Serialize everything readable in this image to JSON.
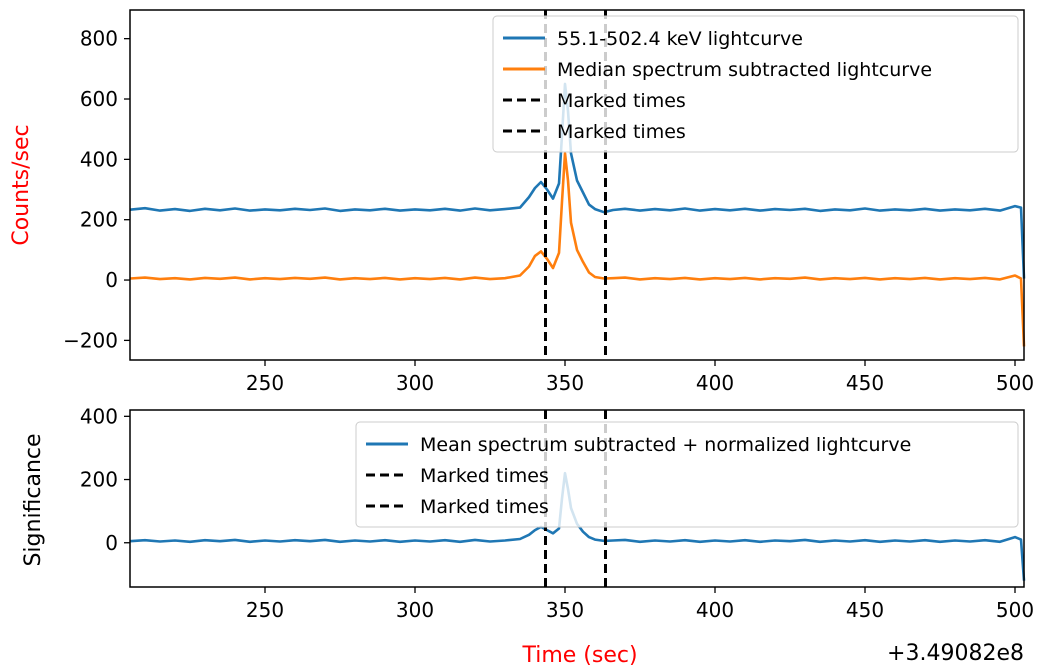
{
  "chart_data": [
    {
      "type": "line",
      "xlabel": "",
      "ylabel": "Counts/sec",
      "xlim": [
        205,
        503
      ],
      "ylim": [
        -265,
        895
      ],
      "x_ticks": [
        "250",
        "300",
        "350",
        "400",
        "450",
        "500"
      ],
      "y_ticks": [
        "−200",
        "0",
        "200",
        "400",
        "600",
        "800"
      ],
      "x_tick_values": [
        250,
        300,
        350,
        400,
        450,
        500
      ],
      "y_tick_values": [
        -200,
        0,
        200,
        400,
        600,
        800
      ],
      "marked_times": [
        343.5,
        363.5
      ],
      "series": [
        {
          "name": "55.1-502.4 keV lightcurve",
          "color": "#1f77b4",
          "points": [
            [
              205,
              233
            ],
            [
              210,
              238
            ],
            [
              215,
              230
            ],
            [
              220,
              235
            ],
            [
              225,
              229
            ],
            [
              230,
              236
            ],
            [
              235,
              231
            ],
            [
              240,
              237
            ],
            [
              245,
              230
            ],
            [
              250,
              234
            ],
            [
              255,
              231
            ],
            [
              260,
              236
            ],
            [
              265,
              232
            ],
            [
              270,
              237
            ],
            [
              275,
              229
            ],
            [
              280,
              234
            ],
            [
              285,
              231
            ],
            [
              290,
              236
            ],
            [
              295,
              230
            ],
            [
              300,
              234
            ],
            [
              305,
              231
            ],
            [
              310,
              236
            ],
            [
              315,
              230
            ],
            [
              320,
              237
            ],
            [
              325,
              231
            ],
            [
              330,
              235
            ],
            [
              335,
              240
            ],
            [
              338,
              275
            ],
            [
              340,
              305
            ],
            [
              342,
              325
            ],
            [
              344,
              300
            ],
            [
              346,
              270
            ],
            [
              348,
              320
            ],
            [
              349,
              480
            ],
            [
              350,
              650
            ],
            [
              351,
              560
            ],
            [
              352,
              420
            ],
            [
              354,
              330
            ],
            [
              356,
              290
            ],
            [
              358,
              250
            ],
            [
              360,
              235
            ],
            [
              363,
              225
            ],
            [
              366,
              232
            ],
            [
              370,
              236
            ],
            [
              375,
              230
            ],
            [
              380,
              235
            ],
            [
              385,
              231
            ],
            [
              390,
              237
            ],
            [
              395,
              230
            ],
            [
              400,
              235
            ],
            [
              405,
              231
            ],
            [
              410,
              236
            ],
            [
              415,
              230
            ],
            [
              420,
              235
            ],
            [
              425,
              232
            ],
            [
              430,
              236
            ],
            [
              435,
              229
            ],
            [
              440,
              234
            ],
            [
              445,
              231
            ],
            [
              450,
              237
            ],
            [
              455,
              230
            ],
            [
              460,
              234
            ],
            [
              465,
              231
            ],
            [
              470,
              236
            ],
            [
              475,
              230
            ],
            [
              480,
              234
            ],
            [
              485,
              231
            ],
            [
              490,
              236
            ],
            [
              495,
              230
            ],
            [
              500,
              245
            ],
            [
              502,
              240
            ],
            [
              503,
              5
            ]
          ]
        },
        {
          "name": "Median spectrum subtracted lightcurve",
          "color": "#ff7f0e",
          "points": [
            [
              205,
              5
            ],
            [
              210,
              8
            ],
            [
              215,
              3
            ],
            [
              220,
              6
            ],
            [
              225,
              2
            ],
            [
              230,
              7
            ],
            [
              235,
              4
            ],
            [
              240,
              8
            ],
            [
              245,
              2
            ],
            [
              250,
              6
            ],
            [
              255,
              3
            ],
            [
              260,
              7
            ],
            [
              265,
              4
            ],
            [
              270,
              8
            ],
            [
              275,
              2
            ],
            [
              280,
              6
            ],
            [
              285,
              3
            ],
            [
              290,
              7
            ],
            [
              295,
              2
            ],
            [
              300,
              6
            ],
            [
              305,
              3
            ],
            [
              310,
              7
            ],
            [
              315,
              2
            ],
            [
              320,
              8
            ],
            [
              325,
              3
            ],
            [
              330,
              6
            ],
            [
              335,
              15
            ],
            [
              338,
              45
            ],
            [
              340,
              80
            ],
            [
              342,
              95
            ],
            [
              344,
              70
            ],
            [
              346,
              40
            ],
            [
              348,
              90
            ],
            [
              349,
              260
            ],
            [
              350,
              420
            ],
            [
              351,
              330
            ],
            [
              352,
              190
            ],
            [
              354,
              100
            ],
            [
              356,
              60
            ],
            [
              358,
              25
            ],
            [
              360,
              10
            ],
            [
              363,
              5
            ],
            [
              366,
              6
            ],
            [
              370,
              8
            ],
            [
              375,
              2
            ],
            [
              380,
              6
            ],
            [
              385,
              3
            ],
            [
              390,
              7
            ],
            [
              395,
              2
            ],
            [
              400,
              6
            ],
            [
              405,
              3
            ],
            [
              410,
              7
            ],
            [
              415,
              2
            ],
            [
              420,
              6
            ],
            [
              425,
              4
            ],
            [
              430,
              8
            ],
            [
              435,
              2
            ],
            [
              440,
              6
            ],
            [
              445,
              3
            ],
            [
              450,
              7
            ],
            [
              455,
              2
            ],
            [
              460,
              6
            ],
            [
              465,
              3
            ],
            [
              470,
              7
            ],
            [
              475,
              2
            ],
            [
              480,
              6
            ],
            [
              485,
              3
            ],
            [
              490,
              7
            ],
            [
              495,
              2
            ],
            [
              500,
              15
            ],
            [
              502,
              5
            ],
            [
              503,
              -220
            ]
          ]
        }
      ],
      "legend_entries": [
        "55.1-502.4 keV lightcurve",
        "Median spectrum subtracted lightcurve",
        "Marked times",
        "Marked times"
      ],
      "legend_position": "top-right"
    },
    {
      "type": "line",
      "xlabel": "Time (sec)",
      "ylabel": "Significance",
      "xlim": [
        205,
        503
      ],
      "ylim": [
        -140,
        420
      ],
      "x_ticks": [
        "250",
        "300",
        "350",
        "400",
        "450",
        "500"
      ],
      "y_ticks": [
        "0",
        "200",
        "400"
      ],
      "x_tick_values": [
        250,
        300,
        350,
        400,
        450,
        500
      ],
      "y_tick_values": [
        0,
        200,
        400
      ],
      "x_offset_label": "+3.49082e8",
      "marked_times": [
        343.5,
        363.5
      ],
      "series": [
        {
          "name": "Mean spectrum subtracted + normalized lightcurve",
          "color": "#1f77b4",
          "points": [
            [
              205,
              5
            ],
            [
              210,
              8
            ],
            [
              215,
              4
            ],
            [
              220,
              7
            ],
            [
              225,
              3
            ],
            [
              230,
              8
            ],
            [
              235,
              5
            ],
            [
              240,
              9
            ],
            [
              245,
              3
            ],
            [
              250,
              7
            ],
            [
              255,
              4
            ],
            [
              260,
              8
            ],
            [
              265,
              5
            ],
            [
              270,
              9
            ],
            [
              275,
              3
            ],
            [
              280,
              7
            ],
            [
              285,
              4
            ],
            [
              290,
              8
            ],
            [
              295,
              3
            ],
            [
              300,
              7
            ],
            [
              305,
              4
            ],
            [
              310,
              8
            ],
            [
              315,
              3
            ],
            [
              320,
              9
            ],
            [
              325,
              4
            ],
            [
              330,
              7
            ],
            [
              335,
              12
            ],
            [
              338,
              25
            ],
            [
              340,
              40
            ],
            [
              342,
              50
            ],
            [
              344,
              40
            ],
            [
              346,
              30
            ],
            [
              348,
              45
            ],
            [
              349,
              140
            ],
            [
              350,
              220
            ],
            [
              351,
              170
            ],
            [
              352,
              110
            ],
            [
              354,
              60
            ],
            [
              356,
              35
            ],
            [
              358,
              18
            ],
            [
              360,
              10
            ],
            [
              363,
              6
            ],
            [
              366,
              7
            ],
            [
              370,
              9
            ],
            [
              375,
              3
            ],
            [
              380,
              7
            ],
            [
              385,
              4
            ],
            [
              390,
              8
            ],
            [
              395,
              3
            ],
            [
              400,
              7
            ],
            [
              405,
              4
            ],
            [
              410,
              8
            ],
            [
              415,
              3
            ],
            [
              420,
              7
            ],
            [
              425,
              5
            ],
            [
              430,
              9
            ],
            [
              435,
              3
            ],
            [
              440,
              7
            ],
            [
              445,
              4
            ],
            [
              450,
              8
            ],
            [
              455,
              3
            ],
            [
              460,
              7
            ],
            [
              465,
              4
            ],
            [
              470,
              8
            ],
            [
              475,
              3
            ],
            [
              480,
              7
            ],
            [
              485,
              4
            ],
            [
              490,
              8
            ],
            [
              495,
              3
            ],
            [
              500,
              18
            ],
            [
              502,
              10
            ],
            [
              503,
              -120
            ]
          ]
        }
      ],
      "legend_entries": [
        "Mean spectrum subtracted + normalized lightcurve",
        "Marked times",
        "Marked times"
      ],
      "legend_position": "top-right"
    }
  ],
  "colors": {
    "axis_label_accent": "#ff0000",
    "marked_line": "#000000"
  }
}
